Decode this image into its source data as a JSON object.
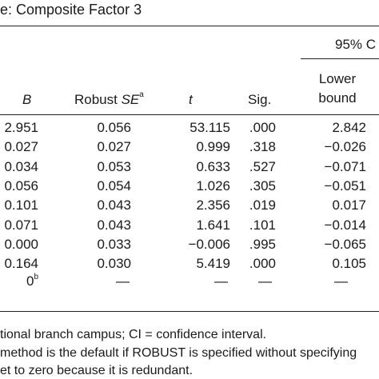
{
  "title": "e: Composite Factor 3",
  "ci_header": "95% C",
  "columns": {
    "b": "B",
    "se": "Robust ",
    "se_it": "SE",
    "se_sup": "a",
    "t": "t",
    "sig": "Sig.",
    "lower1": "Lower",
    "lower2": "bound"
  },
  "rows": [
    {
      "b": "2.951",
      "se": "0.056",
      "t": "53.115",
      "sig": ".000",
      "lower": "2.842"
    },
    {
      "b": "0.027",
      "se": "0.027",
      "t": "0.999",
      "sig": ".318",
      "lower": "−0.026"
    },
    {
      "b": "0.034",
      "se": "0.053",
      "t": "0.633",
      "sig": ".527",
      "lower": "−0.071"
    },
    {
      "b": "0.056",
      "se": "0.054",
      "t": "1.026",
      "sig": ".305",
      "lower": "−0.051"
    },
    {
      "b": "0.101",
      "se": "0.043",
      "t": "2.356",
      "sig": ".019",
      "lower": "0.017"
    },
    {
      "b": "0.071",
      "se": "0.043",
      "t": "1.641",
      "sig": ".101",
      "lower": "−0.014"
    },
    {
      "b": "0.000",
      "se": "0.033",
      "t": "−0.006",
      "sig": ".995",
      "lower": "−0.065"
    },
    {
      "b": "0.164",
      "se": "0.030",
      "t": "5.419",
      "sig": ".000",
      "lower": "0.105"
    }
  ],
  "last_row": {
    "b": "0",
    "b_sup": "b",
    "se": "—",
    "t": "—",
    "sig": "—",
    "lower": "—"
  },
  "notes": [
    "tional branch campus; CI = confidence interval.",
    "method is the default if ROBUST is specified without specifying",
    "et to zero because it is redundant."
  ]
}
